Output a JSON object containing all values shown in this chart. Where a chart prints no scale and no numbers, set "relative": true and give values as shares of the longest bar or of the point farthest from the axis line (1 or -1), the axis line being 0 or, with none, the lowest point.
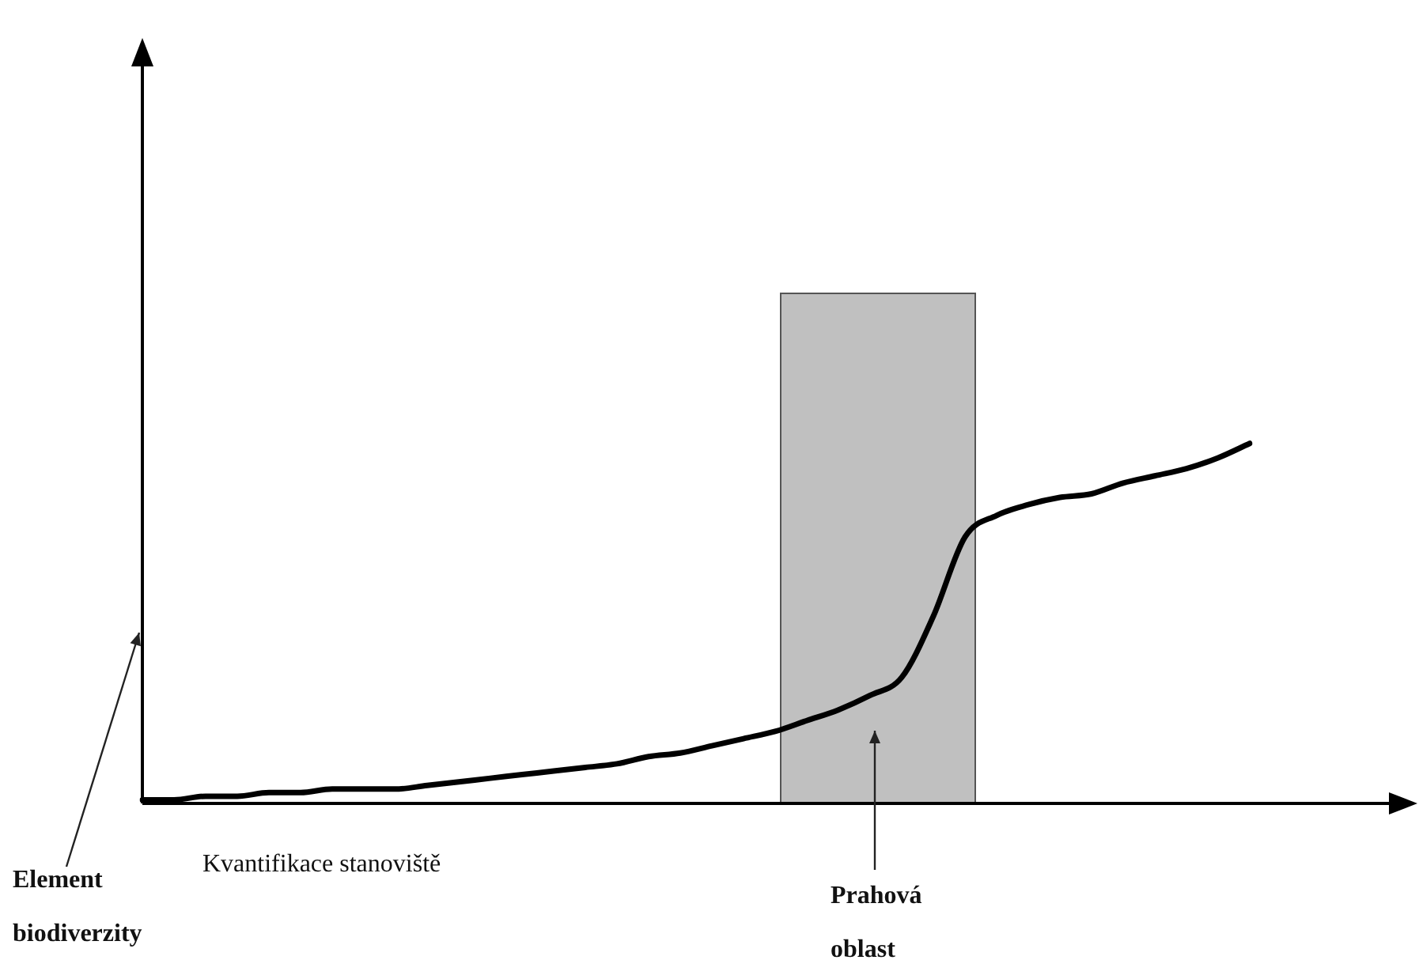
{
  "chart_data": {
    "type": "line",
    "relative": true,
    "xlabel": "Kvantifikace stanoviště",
    "ylabel": "Element biodiverzity",
    "categories": [
      null,
      null,
      null,
      null,
      null,
      null,
      null,
      null,
      null,
      null,
      null,
      null,
      null,
      null,
      null,
      null,
      null,
      null,
      null,
      null,
      null,
      null,
      null,
      null,
      null,
      null,
      null,
      null,
      null,
      null,
      null,
      null,
      null,
      null,
      null,
      null
    ],
    "series": [
      {
        "color": "#000000",
        "values": [
          0.01,
          0.01,
          0.02,
          0.02,
          0.03,
          0.03,
          0.04,
          0.04,
          0.04,
          0.05,
          0.06,
          0.07,
          0.08,
          0.09,
          0.1,
          0.11,
          0.13,
          0.14,
          0.16,
          0.18,
          0.2,
          0.23,
          0.26,
          0.3,
          0.35,
          0.52,
          0.74,
          0.8,
          0.83,
          0.85,
          0.86,
          0.89,
          0.91,
          0.93,
          0.96,
          1
        ]
      }
    ],
    "annotations": [
      "Prahová oblast"
    ],
    "grid": false,
    "legend": false,
    "marker": "none",
    "line_style": "solid",
    "tick_labels": false
  }
}
